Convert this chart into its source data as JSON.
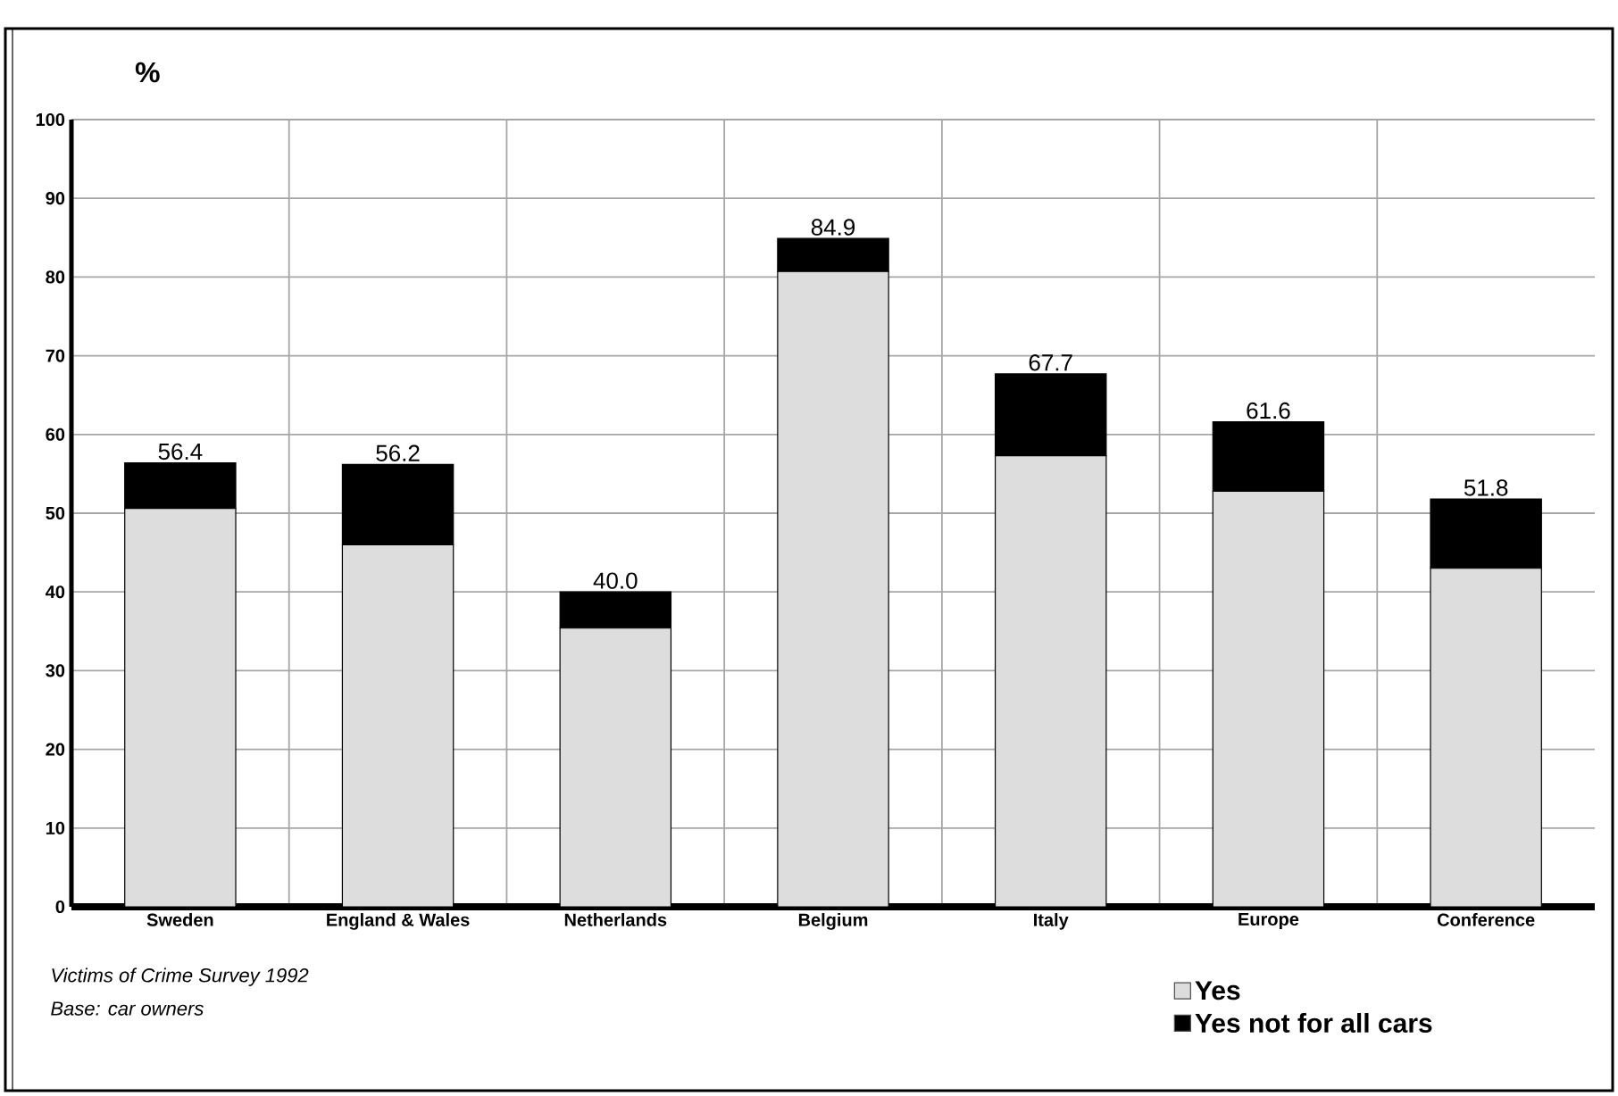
{
  "chart_data": {
    "type": "bar",
    "stacked": true,
    "ylabel": "%",
    "categories": [
      "Sweden",
      "England & Wales",
      "Netherlands",
      "Belgium",
      "Italy",
      "Europe",
      "Conference"
    ],
    "series": [
      {
        "name": "Yes",
        "color": "#dddddd",
        "values": [
          50.6,
          46.0,
          35.4,
          80.7,
          57.3,
          52.8,
          43.0
        ]
      },
      {
        "name": "Yes not for all cars",
        "color": "#000000",
        "values": [
          5.8,
          10.2,
          4.6,
          4.2,
          10.4,
          8.8,
          8.8
        ]
      }
    ],
    "totals": [
      "56.4",
      "56.2",
      "40.0",
      "84.9",
      "67.7",
      "61.6",
      "51.8"
    ],
    "ylim": [
      0,
      100
    ],
    "yticks": [
      0,
      10,
      20,
      30,
      40,
      50,
      60,
      70,
      80,
      90,
      100
    ],
    "grid": true,
    "legend": "bottom right",
    "annotations": [
      "Victims of Crime Survey 1992",
      "Base: car owners"
    ]
  }
}
